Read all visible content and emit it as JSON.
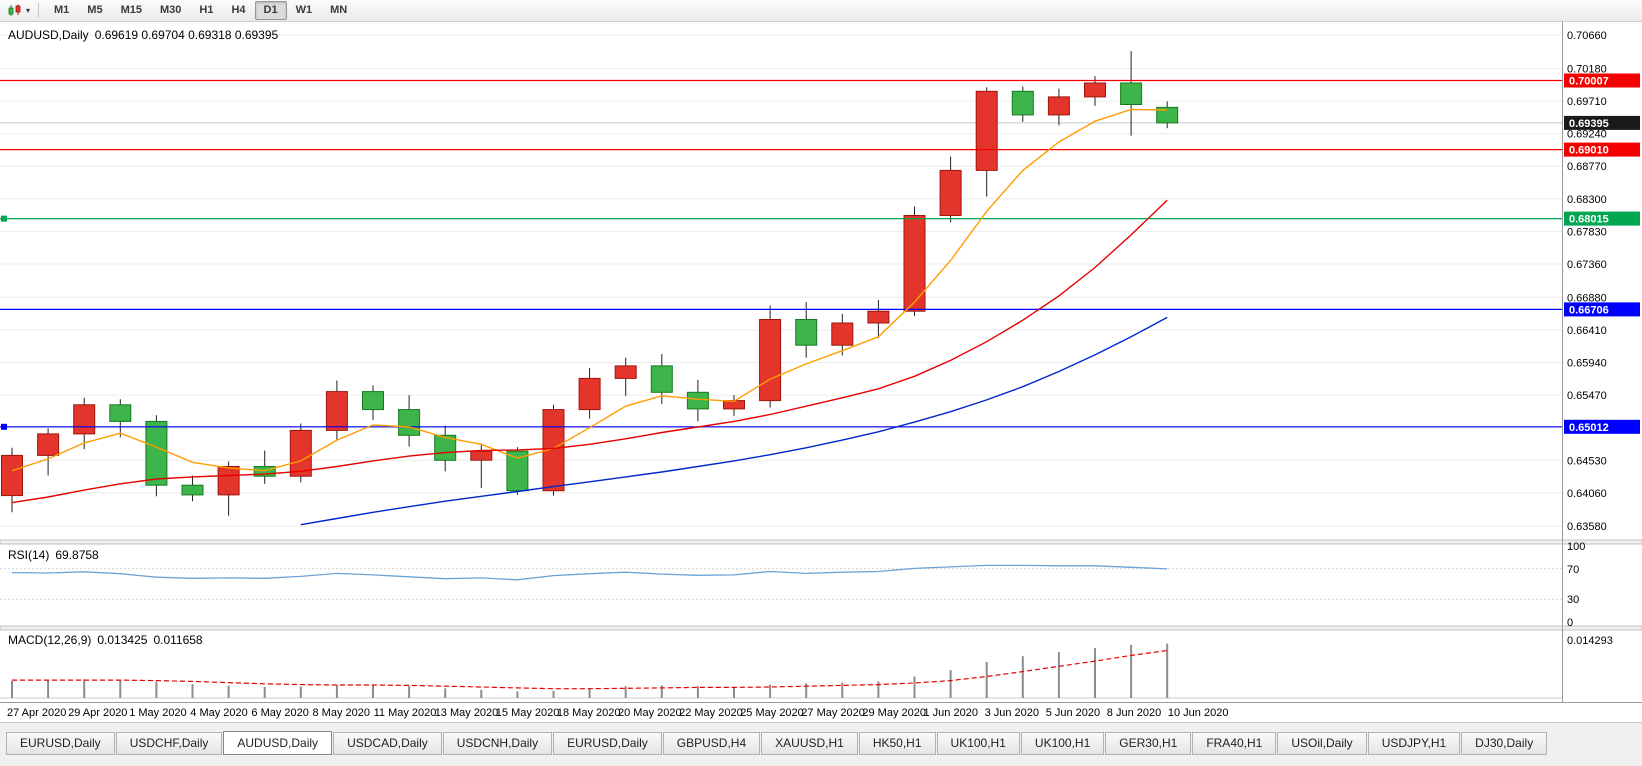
{
  "toolbar": {
    "chart_type_icon": "candlestick-chart-icon",
    "timeframes": [
      "M1",
      "M5",
      "M15",
      "M30",
      "H1",
      "H4",
      "D1",
      "W1",
      "MN"
    ],
    "active_timeframe": "D1"
  },
  "chart_data": {
    "type": "candlestick",
    "symbol": "AUDUSD",
    "period": "Daily",
    "title": "AUDUSD,Daily",
    "ohlc_text": "0.69619 0.69704 0.69318 0.69395",
    "quote": {
      "open": 0.69619,
      "high": 0.69704,
      "low": 0.69318,
      "close": 0.69395
    },
    "y_range": [
      0.6338,
      0.7085
    ],
    "colors": {
      "bull": "#e3352b",
      "bull_border": "#9e150d",
      "bear": "#3eb54b",
      "bear_border": "#157a1f",
      "wick": "#222222",
      "grid": "#ececec",
      "ma_fast": "#ff9d00",
      "ma_mid": "#e60000",
      "ma_slow": "#0026cc",
      "rsi_line": "#6ba3d6",
      "macd_hist": "#8c8c8c",
      "macd_signal": "#e60000",
      "bid_badge": "#1a1a1a"
    },
    "y_axis_labels": [
      "0.70660",
      "0.70180",
      "0.69710",
      "0.69240",
      "0.68770",
      "0.68300",
      "0.67830",
      "0.67360",
      "0.66880",
      "0.66410",
      "0.65940",
      "0.65470",
      "0.65000",
      "0.64530",
      "0.64060",
      "0.63580"
    ],
    "x_axis_labels": [
      "27 Apr 2020",
      "29 Apr 2020",
      "1 May 2020",
      "4 May 2020",
      "6 May 2020",
      "8 May 2020",
      "11 May 2020",
      "13 May 2020",
      "15 May 2020",
      "18 May 2020",
      "20 May 2020",
      "22 May 2020",
      "25 May 2020",
      "27 May 2020",
      "29 May 2020",
      "1 Jun 2020",
      "3 Jun 2020",
      "5 Jun 2020",
      "8 Jun 2020",
      "10 Jun 2020"
    ],
    "candles": [
      {
        "d": "27 Apr",
        "o": 0.6402,
        "h": 0.6471,
        "l": 0.6378,
        "c": 0.646
      },
      {
        "d": "28 Apr",
        "o": 0.646,
        "h": 0.6499,
        "l": 0.6431,
        "c": 0.6491
      },
      {
        "d": "29 Apr",
        "o": 0.6491,
        "h": 0.6543,
        "l": 0.6469,
        "c": 0.6533
      },
      {
        "d": "30 Apr",
        "o": 0.6533,
        "h": 0.6541,
        "l": 0.6486,
        "c": 0.6509
      },
      {
        "d": "1 May",
        "o": 0.6509,
        "h": 0.6518,
        "l": 0.6401,
        "c": 0.6417
      },
      {
        "d": "4 May",
        "o": 0.6417,
        "h": 0.6431,
        "l": 0.6394,
        "c": 0.6403
      },
      {
        "d": "5 May",
        "o": 0.6403,
        "h": 0.6451,
        "l": 0.6373,
        "c": 0.6444
      },
      {
        "d": "6 May",
        "o": 0.6444,
        "h": 0.6467,
        "l": 0.6419,
        "c": 0.643
      },
      {
        "d": "7 May",
        "o": 0.643,
        "h": 0.6506,
        "l": 0.6421,
        "c": 0.6496
      },
      {
        "d": "8 May",
        "o": 0.6496,
        "h": 0.6568,
        "l": 0.6482,
        "c": 0.6552
      },
      {
        "d": "11 May",
        "o": 0.6552,
        "h": 0.6561,
        "l": 0.6511,
        "c": 0.6526
      },
      {
        "d": "12 May",
        "o": 0.6526,
        "h": 0.6547,
        "l": 0.6473,
        "c": 0.6489
      },
      {
        "d": "13 May",
        "o": 0.6489,
        "h": 0.6503,
        "l": 0.6437,
        "c": 0.6453
      },
      {
        "d": "14 May",
        "o": 0.6453,
        "h": 0.6477,
        "l": 0.6413,
        "c": 0.6466
      },
      {
        "d": "15 May",
        "o": 0.6466,
        "h": 0.6472,
        "l": 0.6403,
        "c": 0.6409
      },
      {
        "d": "18 May",
        "o": 0.6409,
        "h": 0.6533,
        "l": 0.6402,
        "c": 0.6526
      },
      {
        "d": "19 May",
        "o": 0.6526,
        "h": 0.6586,
        "l": 0.6513,
        "c": 0.6571
      },
      {
        "d": "20 May",
        "o": 0.6571,
        "h": 0.6601,
        "l": 0.6546,
        "c": 0.6589
      },
      {
        "d": "21 May",
        "o": 0.6589,
        "h": 0.6606,
        "l": 0.6534,
        "c": 0.6551
      },
      {
        "d": "22 May",
        "o": 0.6551,
        "h": 0.6569,
        "l": 0.6509,
        "c": 0.6527
      },
      {
        "d": "25 May",
        "o": 0.6527,
        "h": 0.6547,
        "l": 0.6517,
        "c": 0.6539
      },
      {
        "d": "26 May",
        "o": 0.6539,
        "h": 0.6676,
        "l": 0.6529,
        "c": 0.6656
      },
      {
        "d": "27 May",
        "o": 0.6656,
        "h": 0.6681,
        "l": 0.6601,
        "c": 0.6619
      },
      {
        "d": "28 May",
        "o": 0.6619,
        "h": 0.6664,
        "l": 0.6604,
        "c": 0.6651
      },
      {
        "d": "29 May",
        "o": 0.6651,
        "h": 0.6684,
        "l": 0.6629,
        "c": 0.6668
      },
      {
        "d": "1 Jun",
        "o": 0.6668,
        "h": 0.6819,
        "l": 0.6661,
        "c": 0.6806
      },
      {
        "d": "2 Jun",
        "o": 0.6806,
        "h": 0.6891,
        "l": 0.6796,
        "c": 0.6871
      },
      {
        "d": "3 Jun",
        "o": 0.6871,
        "h": 0.6991,
        "l": 0.6833,
        "c": 0.6985
      },
      {
        "d": "4 Jun",
        "o": 0.6985,
        "h": 0.6992,
        "l": 0.6941,
        "c": 0.6951
      },
      {
        "d": "5 Jun",
        "o": 0.6951,
        "h": 0.6989,
        "l": 0.6936,
        "c": 0.6977
      },
      {
        "d": "8 Jun",
        "o": 0.6977,
        "h": 0.7007,
        "l": 0.6964,
        "c": 0.6997
      },
      {
        "d": "9 Jun",
        "o": 0.6997,
        "h": 0.7043,
        "l": 0.6921,
        "c": 0.6966
      },
      {
        "d": "10 Jun",
        "o": 0.69619,
        "h": 0.69704,
        "l": 0.69318,
        "c": 0.69395
      }
    ],
    "ma_fast": {
      "values": [
        0.6438,
        0.6455,
        0.6478,
        0.6492,
        0.6472,
        0.645,
        0.6442,
        0.6438,
        0.6452,
        0.6482,
        0.6504,
        0.6501,
        0.6486,
        0.6476,
        0.6456,
        0.647,
        0.65,
        0.6531,
        0.6546,
        0.6541,
        0.6538,
        0.657,
        0.6592,
        0.6611,
        0.6631,
        0.6681,
        0.6741,
        0.6812,
        0.6871,
        0.6912,
        0.6942,
        0.6959,
        0.6958
      ]
    },
    "ma_mid": {
      "values": [
        0.6392,
        0.64,
        0.641,
        0.6419,
        0.6426,
        0.6429,
        0.6431,
        0.6433,
        0.6437,
        0.6444,
        0.6452,
        0.6459,
        0.6464,
        0.6467,
        0.6468,
        0.647,
        0.6476,
        0.6484,
        0.6493,
        0.6501,
        0.6509,
        0.6519,
        0.6531,
        0.6543,
        0.6556,
        0.6574,
        0.6597,
        0.6624,
        0.6655,
        0.669,
        0.6731,
        0.6778,
        0.6828
      ]
    },
    "ma_slow": {
      "values": [
        null,
        null,
        null,
        null,
        null,
        null,
        null,
        null,
        0.636,
        0.6369,
        0.6378,
        0.6386,
        0.6394,
        0.6401,
        0.6408,
        0.6415,
        0.6422,
        0.6429,
        0.6436,
        0.6444,
        0.6452,
        0.6461,
        0.6471,
        0.6482,
        0.6494,
        0.6508,
        0.6523,
        0.654,
        0.6559,
        0.6581,
        0.6605,
        0.6631,
        0.6659
      ]
    },
    "horizontal_lines": [
      {
        "label": "0.70007",
        "price": 0.70007,
        "color": "#f40000",
        "handles": false
      },
      {
        "label": "0.69010",
        "price": 0.6901,
        "color": "#f40000",
        "handles": false
      },
      {
        "label": "0.68015",
        "price": 0.68015,
        "color": "#00a650",
        "handles": true
      },
      {
        "label": "0.66706",
        "price": 0.66706,
        "color": "#0000ff",
        "handles": false
      },
      {
        "label": "0.65012",
        "price": 0.65012,
        "color": "#0000ff",
        "handles": true
      }
    ],
    "bid": {
      "label": "0.69395",
      "price": 0.69395
    },
    "rsi": {
      "title": "RSI(14)",
      "value_text": "69.8758",
      "levels": [
        "100",
        "70",
        "30",
        "0"
      ],
      "values": [
        65,
        64.5,
        66,
        63.5,
        59,
        57.5,
        58,
        57.5,
        60,
        64,
        62,
        59.5,
        57,
        58,
        55.5,
        61,
        63.5,
        65.5,
        63,
        61.5,
        62,
        66.5,
        64,
        65.5,
        66.5,
        70.5,
        72.5,
        74.5,
        74.5,
        74,
        74,
        72,
        69.88
      ]
    },
    "macd": {
      "title": "MACD(12,26,9)",
      "main_text": "0.013425",
      "signal_text": "0.011658",
      "scale_label": "0.014293",
      "scale_max": 0.014293,
      "histogram": [
        0.0042,
        0.0044,
        0.0046,
        0.0045,
        0.004,
        0.0034,
        0.003,
        0.0027,
        0.0028,
        0.0032,
        0.0033,
        0.0029,
        0.0024,
        0.002,
        0.0016,
        0.0018,
        0.0024,
        0.0029,
        0.0031,
        0.0029,
        0.0027,
        0.0033,
        0.0036,
        0.0038,
        0.0041,
        0.0053,
        0.0069,
        0.0089,
        0.0103,
        0.0113,
        0.0123,
        0.0131,
        0.0134
      ],
      "signal": [
        0.0044,
        0.0044,
        0.0044,
        0.0044,
        0.0043,
        0.0041,
        0.0038,
        0.0035,
        0.0033,
        0.0032,
        0.0032,
        0.0031,
        0.0029,
        0.0027,
        0.0025,
        0.0023,
        0.0023,
        0.0024,
        0.0025,
        0.0026,
        0.0026,
        0.0027,
        0.0029,
        0.0031,
        0.0033,
        0.0037,
        0.0043,
        0.0053,
        0.0065,
        0.0078,
        0.0091,
        0.0105,
        0.0117
      ]
    }
  },
  "tabs": {
    "items": [
      "EURUSD,Daily",
      "USDCHF,Daily",
      "AUDUSD,Daily",
      "USDCAD,Daily",
      "USDCNH,Daily",
      "EURUSD,Daily",
      "GBPUSD,H4",
      "XAUUSD,H1",
      "HK50,H1",
      "UK100,H1",
      "UK100,H1",
      "GER30,H1",
      "FRA40,H1",
      "USOil,Daily",
      "USDJPY,H1",
      "DJ30,Daily"
    ],
    "active_index": 2
  }
}
